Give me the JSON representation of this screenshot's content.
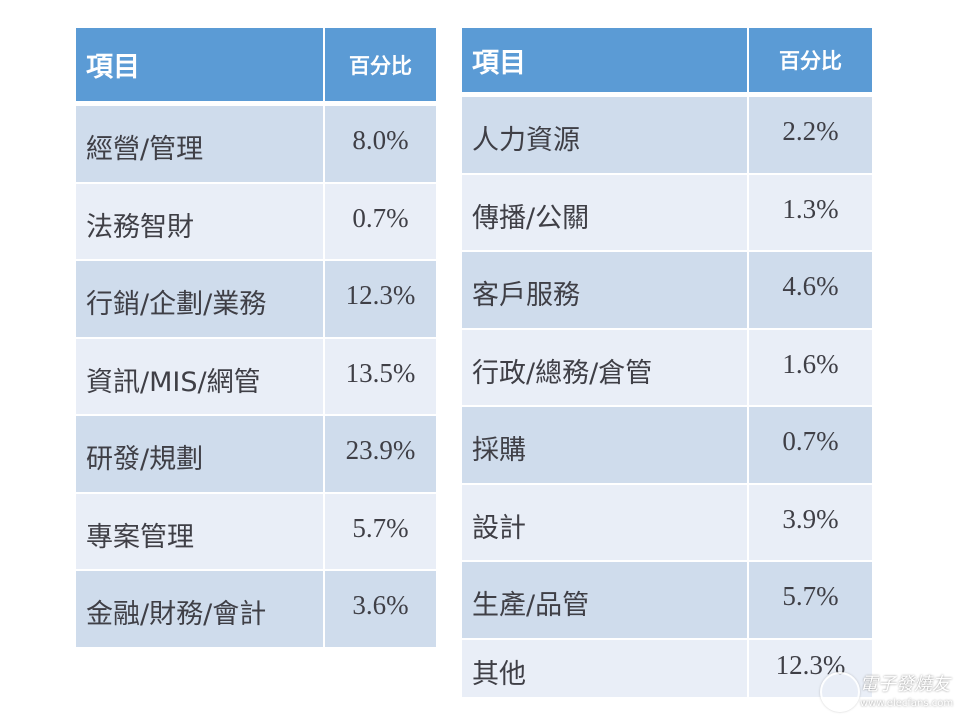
{
  "left_table": {
    "header": {
      "item": "項目",
      "percent": "百分比"
    },
    "rows": [
      {
        "item": "經營/管理",
        "percent": "8.0%"
      },
      {
        "item": "法務智財",
        "percent": "0.7%"
      },
      {
        "item": "行銷/企劃/業務",
        "percent": "12.3%"
      },
      {
        "item": "資訊/MIS/網管",
        "percent": "13.5%"
      },
      {
        "item": "研發/規劃",
        "percent": "23.9%"
      },
      {
        "item": "專案管理",
        "percent": "5.7%"
      },
      {
        "item": "金融/財務/會計",
        "percent": "3.6%"
      }
    ]
  },
  "right_table": {
    "header": {
      "item": "項目",
      "percent": "百分比"
    },
    "rows": [
      {
        "item": "人力資源",
        "percent": "2.2%"
      },
      {
        "item": "傳播/公關",
        "percent": "1.3%"
      },
      {
        "item": "客戶服務",
        "percent": "4.6%"
      },
      {
        "item": "行政/總務/倉管",
        "percent": "1.6%"
      },
      {
        "item": "採購",
        "percent": "0.7%"
      },
      {
        "item": "設計",
        "percent": "3.9%"
      },
      {
        "item": "生產/品管",
        "percent": "5.7%"
      },
      {
        "item": "其他",
        "percent": "12.3%"
      }
    ]
  },
  "colors": {
    "header": "#5b9bd5",
    "row_odd": "#cfdcec",
    "row_even": "#e9eef7"
  },
  "watermark": {
    "name": "電子發燒友",
    "url": "www.elecfans.com"
  }
}
